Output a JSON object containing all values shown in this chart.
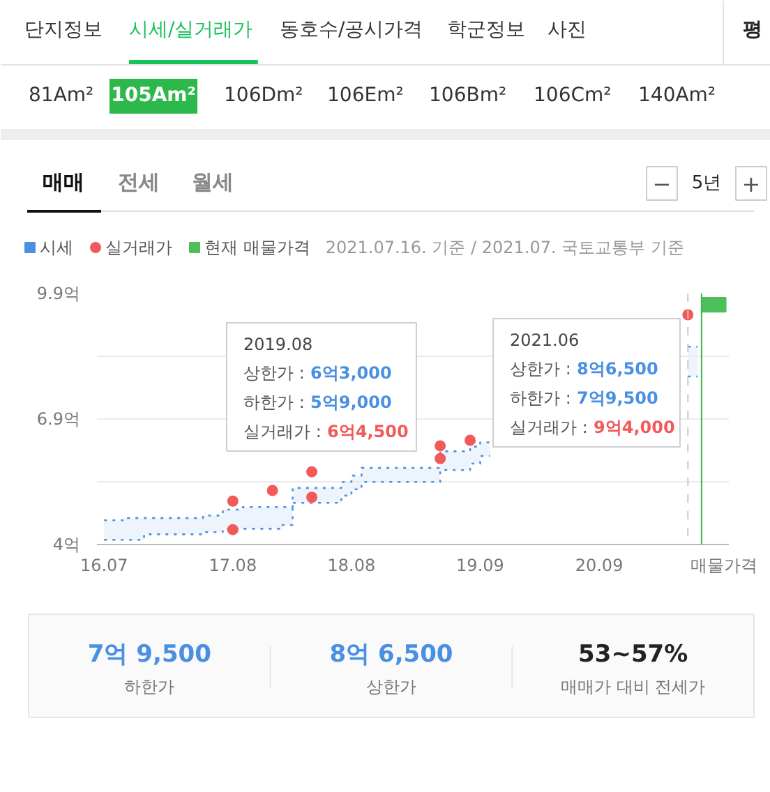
{
  "chart_data": [
    {
      "type": "other",
      "annotations": [
        "단지정보",
        "시세/실거래가",
        "동호수/공시가격",
        "학군정보",
        "사진",
        "평",
        "81Am²",
        "105Am²",
        "106Dm²",
        "106Em²",
        "106Bm²",
        "106Cm²",
        "140Am²",
        "매매",
        "전세",
        "월세",
        "−",
        "5년",
        "+"
      ]
    },
    {
      "type": "step",
      "legend": "top left",
      "grid": "y",
      "xlim": [
        "2016-06-09",
        "2021-10-05"
      ],
      "xticks": [
        {
          "value": "2016-07",
          "label": "16.07"
        },
        {
          "value": "2017-08",
          "label": "17.08"
        },
        {
          "value": "2018-08",
          "label": "18.08"
        },
        {
          "value": "2019-09",
          "label": "19.09"
        },
        {
          "value": "2020-09",
          "label": "20.09"
        },
        {
          "value": "2021-09-20",
          "label": "매물가격"
        }
      ],
      "ylim": [
        4,
        9.9
      ],
      "yticks": [
        {
          "value": 4,
          "label": "4억"
        },
        {
          "value": 5.475,
          "label": null
        },
        {
          "value": 6.95,
          "label": "6.9억"
        },
        {
          "value": 8.425,
          "label": null
        },
        {
          "value": 9.9,
          "label": "9.9억"
        }
      ],
      "series": [
        {
          "name": "시세",
          "type": "step",
          "color": "#4a90e2",
          "line_style": "dotted",
          "x": [
            "2016-07",
            "2016-09",
            "2016-11",
            "2017-05",
            "2017-07",
            "2017-09",
            "2018-01",
            "2018-02",
            "2018-07",
            "2018-08",
            "2018-09",
            "2019-05",
            "2019-08",
            "2019-09",
            "2019-10",
            "2021-06",
            "2021-07"
          ],
          "values": [
            4.57,
            4.62,
            4.62,
            4.68,
            4.82,
            4.88,
            4.88,
            5.33,
            5.47,
            5.62,
            5.8,
            6.19,
            6.3,
            6.4,
            null,
            8.65,
            8.65
          ],
          "upper": [
            4.57,
            4.62,
            4.62,
            4.68,
            4.82,
            4.88,
            4.88,
            5.33,
            5.47,
            5.62,
            5.8,
            6.19,
            6.3,
            6.4,
            null,
            8.65,
            8.65
          ],
          "lower": [
            4.11,
            4.11,
            4.24,
            4.29,
            4.37,
            4.37,
            4.46,
            4.98,
            5.15,
            5.3,
            5.47,
            5.75,
            5.9,
            6.08,
            null,
            7.95,
            7.95
          ]
        },
        {
          "type": "step",
          "color": "#4a90e2",
          "line_style": "dotted",
          "x": [
            "2016-07",
            "2016-09",
            "2016-11",
            "2017-05",
            "2017-07",
            "2017-09",
            "2018-01",
            "2018-02",
            "2018-07",
            "2018-08",
            "2018-09",
            "2019-05",
            "2019-08",
            "2019-09",
            "2019-10",
            "2021-06",
            "2021-07"
          ],
          "values": [
            4.11,
            4.11,
            4.24,
            4.29,
            4.37,
            4.37,
            4.46,
            4.98,
            5.15,
            5.3,
            5.47,
            5.75,
            5.9,
            6.08,
            null,
            7.95,
            7.95
          ]
        },
        {
          "name": "실거래가",
          "type": "scatter",
          "marker": "circle",
          "color": "#f25a5a",
          "x": [
            "2017-08",
            "2017-08",
            "2017-12",
            "2018-04",
            "2018-04",
            "2019-05",
            "2019-05",
            "2019-08",
            "2021-06"
          ],
          "values": [
            5.02,
            4.35,
            5.27,
            5.71,
            5.11,
            6.32,
            6.02,
            6.45,
            9.4
          ]
        },
        {
          "name": "현재 매물가격",
          "type": "bar",
          "color": "#4cbf5a",
          "x": [
            "2021-08-20"
          ],
          "base": [
            9.47
          ],
          "values": [
            0.33
          ]
        }
      ],
      "ref_lines": [
        {
          "axis": "x",
          "value": "2021-06",
          "color": "#c8c8c8",
          "line_style": "dashed"
        },
        {
          "axis": "x",
          "value": "2021-07-13",
          "color": "#3ab54a"
        }
      ],
      "annotations": [
        "2021.07.16. 기준 / 2021.07. 국토교통부 기준",
        "2019.08",
        "상한가 : 6억3,000",
        "하한가 : 5억9,000",
        "실거래가 : 6억4,500",
        "2021.06",
        "상한가 : 8억6,500",
        "하한가 : 7억9,500",
        "실거래가 : 9억4,000"
      ]
    },
    {
      "type": "other",
      "annotations": [
        "7억 9,500",
        "하한가",
        "8억 6,500",
        "상한가",
        "53~57%",
        "매매가 대비 전세가"
      ]
    }
  ]
}
